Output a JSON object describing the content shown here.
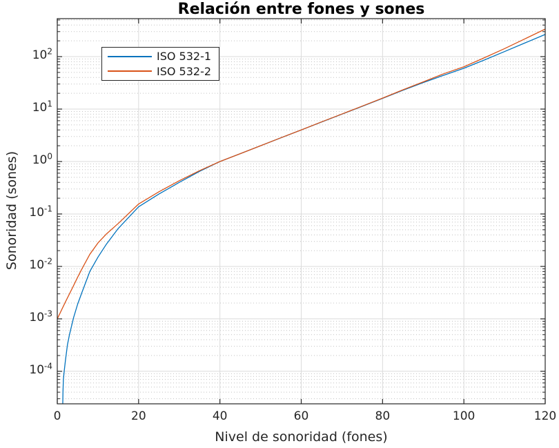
{
  "chart_data": {
    "type": "line",
    "title": "Relación entre fones y sones",
    "xlabel": "Nivel de sonoridad (fones)",
    "ylabel": "Sonoridad (sones)",
    "xscale": "linear",
    "yscale": "log",
    "xlim": [
      0,
      120
    ],
    "ylim": [
      2.4e-05,
      530
    ],
    "xticks": [
      0,
      20,
      40,
      60,
      80,
      100,
      120
    ],
    "ytick_exponents": [
      2,
      1,
      0,
      -1,
      -2,
      -3,
      -4
    ],
    "grid": {
      "major": true,
      "minor_y": true,
      "minor_style": "dotted"
    },
    "legend": {
      "position": "upper-left",
      "border": true
    },
    "series": [
      {
        "name": "ISO 532-1",
        "color": "#0072BD",
        "x": [
          1.35,
          1.4,
          1.5,
          1.7,
          2.0,
          2.5,
          3,
          4,
          5,
          6,
          8,
          10,
          12,
          15,
          20,
          25,
          30,
          35,
          40,
          45,
          50,
          55,
          60,
          65,
          70,
          75,
          80,
          85,
          90,
          95,
          100,
          105,
          110,
          115,
          120
        ],
        "y": [
          2.4e-05,
          4e-05,
          7e-05,
          0.0001,
          0.00016,
          0.00032,
          0.0005,
          0.00105,
          0.0019,
          0.0031,
          0.008,
          0.015,
          0.026,
          0.053,
          0.137,
          0.24,
          0.4,
          0.65,
          1.0,
          1.41,
          2.0,
          2.83,
          4.0,
          5.66,
          8.0,
          11.3,
          16.0,
          22.8,
          32,
          44,
          60,
          86,
          125,
          182,
          265
        ]
      },
      {
        "name": "ISO 532-2",
        "color": "#D95319",
        "x": [
          0,
          1,
          2,
          3,
          4,
          5,
          6,
          8,
          10,
          12,
          15,
          20,
          25,
          30,
          35,
          40,
          45,
          50,
          55,
          60,
          65,
          70,
          75,
          80,
          85,
          90,
          95,
          100,
          105,
          110,
          115,
          120
        ],
        "y": [
          0.001,
          0.00145,
          0.0021,
          0.003,
          0.0043,
          0.0062,
          0.0088,
          0.017,
          0.028,
          0.041,
          0.066,
          0.155,
          0.265,
          0.43,
          0.67,
          1.0,
          1.41,
          2.0,
          2.84,
          4.0,
          5.7,
          8.05,
          11.4,
          16.2,
          23.3,
          33,
          47,
          64,
          95,
          142,
          218,
          335
        ]
      }
    ],
    "colors": {
      "axis": "#262626",
      "grid_major": "#dbdbdb",
      "grid_minor": "#c0c0c0",
      "tick_text": "#262626",
      "background": "#ffffff"
    }
  }
}
